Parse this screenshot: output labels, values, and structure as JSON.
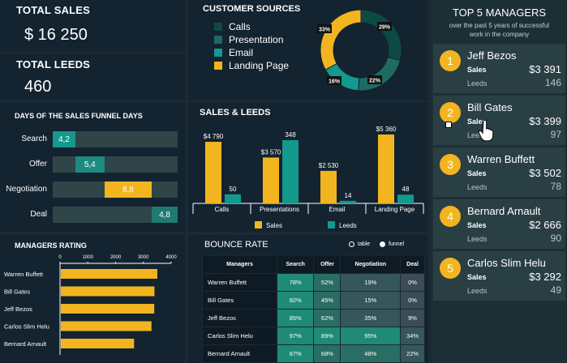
{
  "kpi": {
    "sales_title": "TOTAL SALES",
    "sales_value": "$ 16 250",
    "leeds_title": "TOTAL LEEDS",
    "leeds_value": "460"
  },
  "sources": {
    "title": "CUSTOMER SOURCES",
    "items": [
      {
        "label": "Calls",
        "color": "#0d4a44",
        "pct": 29
      },
      {
        "label": "Presentation",
        "color": "#1f6a62",
        "pct": 22
      },
      {
        "label": "Email",
        "color": "#13998d",
        "pct": 16
      },
      {
        "label": "Landing Page",
        "color": "#f2b51f",
        "pct": 33
      }
    ],
    "labels": [
      "33%",
      "29%",
      "22%",
      "16%"
    ]
  },
  "funnel": {
    "title": "DAYS OF THE SALES FUNNEL DAYS",
    "rows": [
      {
        "label": "Search",
        "value": "4,2",
        "num": 4.2,
        "start": 0,
        "color": "#13998d"
      },
      {
        "label": "Offer",
        "value": "5,4",
        "num": 5.4,
        "start": 4.2,
        "color": "#1d8b80"
      },
      {
        "label": "Negotiation",
        "value": "8,8",
        "num": 8.8,
        "start": 9.6,
        "color": "#f2b51f"
      },
      {
        "label": "Deal",
        "value": "4,8",
        "num": 4.8,
        "start": 18.4,
        "color": "#1f7a70"
      }
    ],
    "total": 23.2
  },
  "chart_data": [
    {
      "type": "bar",
      "title": "SALES & LEEDS",
      "categories": [
        "Calls",
        "Presentations",
        "Email",
        "Landing Page"
      ],
      "series": [
        {
          "name": "Sales",
          "values": [
            4790,
            3570,
            2530,
            5360
          ],
          "labels": [
            "$4 790",
            "$3 570",
            "$2 530",
            "$5 360"
          ],
          "color": "#f2b51f"
        },
        {
          "name": "Leeds",
          "values": [
            50,
            348,
            14,
            48
          ],
          "labels": [
            "50",
            "348",
            "14",
            "48"
          ],
          "color": "#13998d"
        }
      ]
    },
    {
      "type": "bar",
      "title": "MANAGERS RATING",
      "orientation": "horizontal",
      "categories": [
        "Warren Buffett",
        "Bill Gates",
        "Jeff Bezos",
        "Carlos Slim Helu",
        "Bernard Arnault"
      ],
      "values": [
        3502,
        3399,
        3391,
        3292,
        2666
      ],
      "ticks": [
        "0",
        "1000",
        "2000",
        "3000",
        "4000"
      ],
      "xlim": [
        0,
        4000
      ],
      "color": "#f2b51f"
    }
  ],
  "bounce": {
    "title": "BOUNCE RATE",
    "radio_table": "table",
    "radio_funnel": "funnel",
    "headers": [
      "Managers",
      "Search",
      "Offer",
      "Negotiation",
      "Deal"
    ],
    "rows": [
      [
        "Warren Buffett",
        "78%",
        "52%",
        "19%",
        "0%"
      ],
      [
        "Bill Gates",
        "82%",
        "45%",
        "15%",
        "0%"
      ],
      [
        "Jeff Bezos",
        "85%",
        "62%",
        "35%",
        "9%"
      ],
      [
        "Carlos Slim Helu",
        "97%",
        "89%",
        "95%",
        "34%"
      ],
      [
        "Bernard Arnault",
        "87%",
        "68%",
        "48%",
        "22%"
      ]
    ]
  },
  "top5": {
    "title": "TOP 5 MANAGERS",
    "subtitle_1": "over the past 5 years of successful",
    "subtitle_2": "work in the company",
    "sales_label": "Sales",
    "leeds_label": "Leeds",
    "items": [
      {
        "rank": "1",
        "name": "Jeff Bezos",
        "sales": "$3 391",
        "leeds": "146"
      },
      {
        "rank": "2",
        "name": "Bill Gates",
        "sales": "$3 399",
        "leeds": "97"
      },
      {
        "rank": "3",
        "name": "Warren Buffett",
        "sales": "$3 502",
        "leeds": "78"
      },
      {
        "rank": "4",
        "name": "Bernard Arnault",
        "sales": "$2 666",
        "leeds": "90"
      },
      {
        "rank": "5",
        "name": "Carlos Slim Helu",
        "sales": "$3 292",
        "leeds": "49"
      }
    ]
  }
}
